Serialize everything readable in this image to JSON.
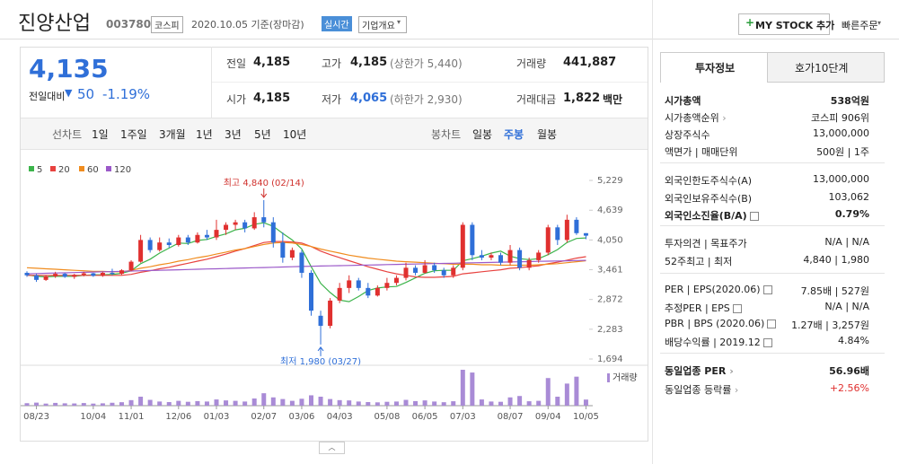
{
  "header": {
    "title": "진양산업",
    "code": "003780",
    "market": "코스피",
    "date": "2020.10.05 기준(장마감)",
    "realtime": "실시간",
    "overview": "기업개요",
    "mystock": "MY STOCK 추가",
    "quick_order": "빠른주문"
  },
  "quote": {
    "price": "4,135",
    "change_label": "전일대비",
    "change": "50",
    "change_rate": "-1.19%",
    "cells": [
      {
        "label": "전일",
        "value": "4,185"
      },
      {
        "label": "고가",
        "value": "4,185",
        "note": "(상한가 5,440)"
      },
      {
        "label": "거래량",
        "value": "441,887"
      },
      {
        "label": "시가",
        "value": "4,185"
      },
      {
        "label": "저가",
        "value": "4,065",
        "note": "(하한가 2,930)"
      },
      {
        "label": "거래대금",
        "value": "1,822",
        "unit": "백만"
      }
    ]
  },
  "tabs": {
    "line_label": "선차트",
    "line_periods": [
      "1일",
      "1주일",
      "3개월",
      "1년",
      "3년",
      "5년",
      "10년"
    ],
    "candle_label": "봉차트",
    "candle_periods": [
      "일봉",
      "주봉",
      "월봉"
    ],
    "active_candle": 1
  },
  "chart_data": {
    "type": "candlestick",
    "categories": [
      null,
      "08/23",
      null,
      null,
      null,
      null,
      null,
      "10/04",
      null,
      null,
      null,
      "11/01",
      null,
      null,
      null,
      null,
      "12/06",
      null,
      null,
      null,
      "01/03",
      null,
      null,
      null,
      null,
      "02/07",
      null,
      null,
      null,
      "03/06",
      null,
      null,
      null,
      "04/03",
      null,
      null,
      null,
      null,
      "05/08",
      null,
      null,
      null,
      "06/05",
      null,
      null,
      null,
      "07/03",
      null,
      null,
      null,
      null,
      "08/07",
      null,
      null,
      null,
      "09/04",
      null,
      null,
      null,
      "10/05"
    ],
    "open": [
      3400,
      3350,
      3260,
      3330,
      3380,
      3320,
      3360,
      3390,
      3340,
      3400,
      3380,
      3450,
      3620,
      4050,
      3850,
      4000,
      3950,
      4100,
      4000,
      4150,
      4100,
      4250,
      4350,
      4400,
      4280,
      4500,
      4400,
      4000,
      3700,
      3800,
      3400,
      2550,
      2350,
      2850,
      3100,
      3250,
      3100,
      2950,
      3100,
      3200,
      3300,
      3500,
      3400,
      3550,
      3450,
      3350,
      3500,
      4350,
      3750,
      3700,
      3750,
      3600,
      3850,
      3500,
      3650,
      3800,
      4300,
      4050,
      4450,
      4185
    ],
    "high": [
      3430,
      3380,
      3350,
      3420,
      3400,
      3380,
      3420,
      3400,
      3420,
      3480,
      3470,
      3650,
      4150,
      4100,
      4100,
      4080,
      4150,
      4150,
      4200,
      4250,
      4450,
      4400,
      4450,
      4450,
      4600,
      4840,
      4500,
      4200,
      3900,
      3850,
      3450,
      2650,
      2900,
      3200,
      3350,
      3300,
      3200,
      3150,
      3300,
      3350,
      3600,
      3550,
      3650,
      3600,
      3500,
      3550,
      4400,
      4400,
      3850,
      3800,
      3800,
      3950,
      3900,
      3700,
      3850,
      4350,
      4350,
      4550,
      4500,
      4185
    ],
    "low": [
      3320,
      3220,
      3240,
      3300,
      3300,
      3280,
      3330,
      3320,
      3320,
      3350,
      3360,
      3430,
      3600,
      3800,
      3820,
      3900,
      3920,
      3950,
      3980,
      4050,
      4050,
      4150,
      4250,
      4200,
      4250,
      4300,
      3900,
      3600,
      3650,
      3300,
      2550,
      1980,
      2300,
      2800,
      3000,
      3050,
      2900,
      2930,
      3050,
      3150,
      3250,
      3350,
      3380,
      3400,
      3300,
      3300,
      3450,
      3650,
      3650,
      3650,
      3550,
      3550,
      3450,
      3450,
      3600,
      3750,
      3950,
      4000,
      4150,
      4065
    ],
    "close": [
      3350,
      3260,
      3330,
      3380,
      3320,
      3360,
      3390,
      3340,
      3400,
      3380,
      3450,
      3620,
      4050,
      3850,
      4000,
      3950,
      4100,
      4000,
      4150,
      4100,
      4250,
      4350,
      4400,
      4280,
      4500,
      4400,
      4000,
      3700,
      3850,
      3400,
      2650,
      2350,
      2850,
      3100,
      3250,
      3100,
      2950,
      3100,
      3200,
      3300,
      3500,
      3400,
      3550,
      3450,
      3350,
      3500,
      4350,
      3750,
      3700,
      3750,
      3600,
      3850,
      3500,
      3650,
      3800,
      4300,
      4050,
      4450,
      4185,
      4135
    ],
    "up_color": "#e0302f",
    "down_color": "#2f6fd8",
    "moving_averages": [
      {
        "name": "5",
        "color": "#3cb44b",
        "values": [
          3360,
          3330,
          3320,
          3330,
          3330,
          3330,
          3350,
          3360,
          3360,
          3370,
          3390,
          3440,
          3580,
          3670,
          3790,
          3890,
          3990,
          3980,
          4040,
          4060,
          4120,
          4170,
          4250,
          4280,
          4360,
          4390,
          4320,
          4180,
          4050,
          3870,
          3520,
          3190,
          3010,
          2860,
          2830,
          2930,
          3050,
          3100,
          3120,
          3130,
          3210,
          3300,
          3390,
          3440,
          3450,
          3450,
          3640,
          3680,
          3730,
          3790,
          3830,
          3730,
          3680,
          3660,
          3680,
          3760,
          3860,
          4000,
          4080,
          4090
        ]
      },
      {
        "name": "20",
        "color": "#e8423f",
        "values": [
          3350,
          3350,
          3350,
          3350,
          3350,
          3350,
          3350,
          3350,
          3350,
          3350,
          3350,
          3370,
          3410,
          3440,
          3480,
          3510,
          3550,
          3590,
          3630,
          3670,
          3720,
          3770,
          3830,
          3880,
          3940,
          4000,
          4020,
          4020,
          4010,
          3990,
          3920,
          3830,
          3760,
          3700,
          3640,
          3580,
          3520,
          3470,
          3420,
          3380,
          3350,
          3320,
          3310,
          3310,
          3320,
          3330,
          3380,
          3400,
          3420,
          3440,
          3460,
          3490,
          3500,
          3520,
          3540,
          3580,
          3610,
          3650,
          3690,
          3720
        ]
      },
      {
        "name": "60",
        "color": "#f08c1e",
        "values": [
          3500,
          3490,
          3480,
          3470,
          3460,
          3450,
          3440,
          3430,
          3430,
          3420,
          3420,
          3450,
          3490,
          3520,
          3560,
          3590,
          3630,
          3660,
          3700,
          3730,
          3770,
          3810,
          3850,
          3880,
          3920,
          3960,
          3990,
          4000,
          3990,
          3960,
          3920,
          3870,
          3830,
          3790,
          3750,
          3720,
          3690,
          3670,
          3650,
          3630,
          3620,
          3610,
          3600,
          3590,
          3580,
          3570,
          3570,
          3570,
          3560,
          3560,
          3550,
          3550,
          3550,
          3550,
          3560,
          3570,
          3580,
          3600,
          3620,
          3640
        ]
      },
      {
        "name": "120",
        "color": "#9b59c9",
        "values": [
          3380,
          3385,
          3390,
          3395,
          3400,
          3405,
          3410,
          3415,
          3420,
          3425,
          3430,
          3435,
          3440,
          3445,
          3450,
          3455,
          3460,
          3465,
          3470,
          3475,
          3480,
          3485,
          3490,
          3495,
          3500,
          3505,
          3510,
          3515,
          3520,
          3525,
          3530,
          3534,
          3538,
          3542,
          3546,
          3550,
          3554,
          3558,
          3562,
          3566,
          3570,
          3574,
          3578,
          3582,
          3586,
          3590,
          3594,
          3598,
          3602,
          3606,
          3610,
          3614,
          3618,
          3622,
          3626,
          3630,
          3634,
          3638,
          3642,
          3646
        ]
      }
    ],
    "volume": [
      180000,
      220000,
      150000,
      200000,
      170000,
      160000,
      190000,
      150000,
      170000,
      210000,
      250000,
      400000,
      650000,
      420000,
      300000,
      260000,
      350000,
      280000,
      330000,
      300000,
      450000,
      380000,
      350000,
      300000,
      520000,
      900000,
      600000,
      480000,
      350000,
      500000,
      750000,
      650000,
      480000,
      400000,
      380000,
      300000,
      260000,
      240000,
      280000,
      300000,
      420000,
      330000,
      380000,
      300000,
      250000,
      320000,
      2600000,
      2400000,
      450000,
      300000,
      280000,
      600000,
      700000,
      320000,
      350000,
      2000000,
      650000,
      1600000,
      2100000,
      441887
    ],
    "volume_label": "거래량",
    "volume_color": "#a98bd6",
    "ylim": [
      1605,
      5336
    ],
    "yticks": [
      {
        "value": 1694,
        "label": "1,694"
      },
      {
        "value": 2283,
        "label": "2,283"
      },
      {
        "value": 2872,
        "label": "2,872"
      },
      {
        "value": 3461,
        "label": "3,461"
      },
      {
        "value": 4050,
        "label": "4,050"
      },
      {
        "value": 4639,
        "label": "4,639"
      },
      {
        "value": 5229,
        "label": "5,229"
      }
    ],
    "grid": false,
    "annotations": [
      {
        "text": "최고 4,840 (02/14)",
        "index": 25,
        "at": "high",
        "color": "#d0312d"
      },
      {
        "text": "최저 1,980 (03/27)",
        "index": 31,
        "at": "low",
        "color": "#2f6fd8"
      }
    ]
  },
  "info": {
    "tabs": [
      "투자정보",
      "호가10단계"
    ],
    "groups": [
      [
        {
          "label": "시가총액",
          "value": "538억원",
          "bold": true
        },
        {
          "label": "시가총액순위",
          "value": "코스피 906위",
          "arrow": true
        },
        {
          "label": "상장주식수",
          "value": "13,000,000"
        },
        {
          "label": "액면가 | 매매단위",
          "value": "500원 | 1주"
        }
      ],
      [
        {
          "label": "외국인한도주식수(A)",
          "value": "13,000,000"
        },
        {
          "label": "외국인보유주식수(B)",
          "value": "103,062"
        },
        {
          "label": "외국인소진율(B/A)",
          "value": "0.79%",
          "bold": true,
          "help": true
        }
      ],
      [
        {
          "label": "투자의견 | 목표주가",
          "value": "N/A | N/A"
        },
        {
          "label": "52주최고 | 최저",
          "value": "4,840 | 1,980"
        }
      ],
      [
        {
          "label": "PER | EPS(2020.06)",
          "value": "7.85배 | 527원",
          "help": true
        },
        {
          "label": "추정PER | EPS",
          "value": "N/A | N/A",
          "help": true
        },
        {
          "label": "PBR | BPS (2020.06)",
          "value": "1.27배 | 3,257원",
          "help": true
        },
        {
          "label": "배당수익률 | 2019.12",
          "value": "4.84%",
          "help": true
        }
      ],
      [
        {
          "label": "동일업종 PER",
          "value": "56.96배",
          "bold": true,
          "arrow": true
        },
        {
          "label": "동일업종 등락률",
          "value": "+2.56%",
          "arrow": true,
          "color": "#e0302f"
        }
      ]
    ]
  }
}
